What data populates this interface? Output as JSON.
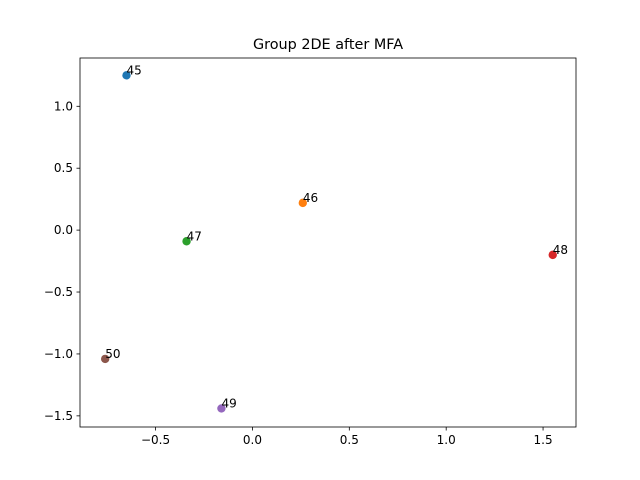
{
  "chart_data": {
    "type": "scatter",
    "title": "Group 2DE after MFA",
    "xlabel": "",
    "ylabel": "",
    "xlim": [
      -0.89,
      1.67
    ],
    "ylim": [
      -1.59,
      1.39
    ],
    "grid": false,
    "x_ticks": [
      {
        "value": -0.5,
        "label": "−0.5"
      },
      {
        "value": 0.0,
        "label": "0.0"
      },
      {
        "value": 0.5,
        "label": "0.5"
      },
      {
        "value": 1.0,
        "label": "1.0"
      },
      {
        "value": 1.5,
        "label": "1.5"
      }
    ],
    "y_ticks": [
      {
        "value": -1.5,
        "label": "−1.5"
      },
      {
        "value": -1.0,
        "label": "−1.0"
      },
      {
        "value": -0.5,
        "label": "−0.5"
      },
      {
        "value": 0.0,
        "label": "0.0"
      },
      {
        "value": 0.5,
        "label": "0.5"
      },
      {
        "value": 1.0,
        "label": "1.0"
      }
    ],
    "points": [
      {
        "label": "45",
        "x": -0.65,
        "y": 1.25,
        "color": "#1f77b4"
      },
      {
        "label": "46",
        "x": 0.26,
        "y": 0.22,
        "color": "#ff7f0e"
      },
      {
        "label": "47",
        "x": -0.34,
        "y": -0.09,
        "color": "#2ca02c"
      },
      {
        "label": "48",
        "x": 1.55,
        "y": -0.2,
        "color": "#d62728"
      },
      {
        "label": "49",
        "x": -0.16,
        "y": -1.44,
        "color": "#9467bd"
      },
      {
        "label": "50",
        "x": -0.76,
        "y": -1.04,
        "color": "#8c564b"
      }
    ]
  }
}
